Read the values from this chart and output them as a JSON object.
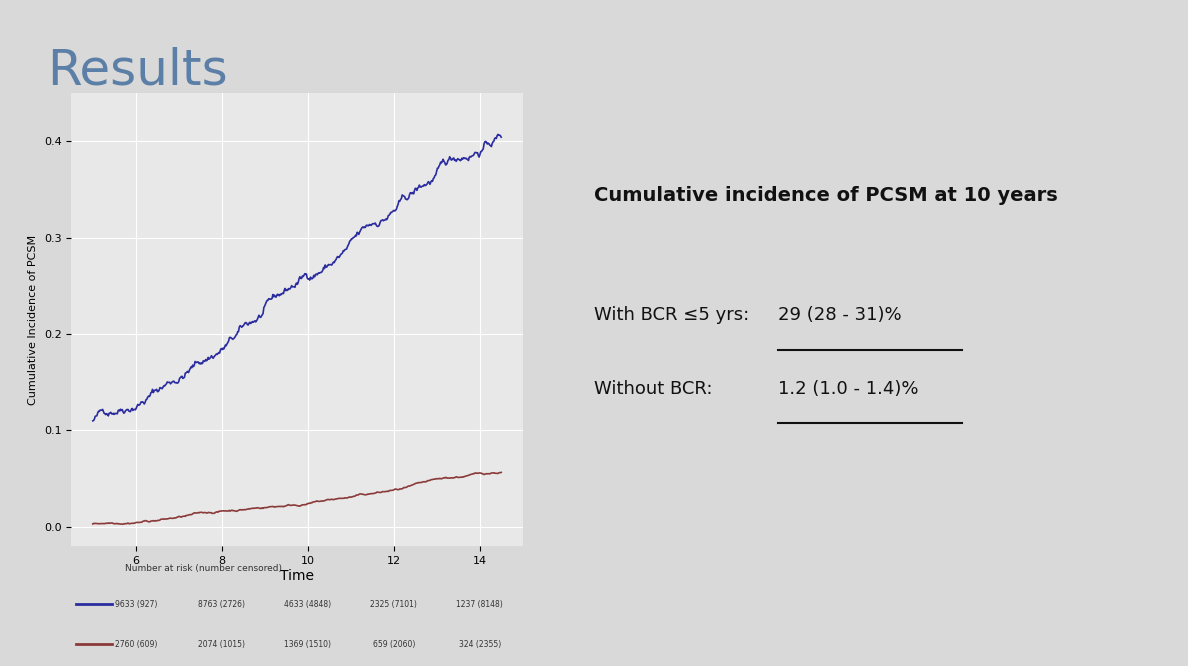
{
  "title": "Results",
  "title_color": "#5B7FA6",
  "title_fontsize": 36,
  "background_color": "#D9D9D9",
  "plot_bg_color": "#E8E8E8",
  "ylabel": "Cumulative Incidence of PCSM",
  "xlabel": "Time",
  "xlim": [
    4.5,
    15
  ],
  "ylim": [
    -0.02,
    0.45
  ],
  "xticks": [
    6,
    8,
    10,
    12,
    14
  ],
  "yticks": [
    0.0,
    0.1,
    0.2,
    0.3,
    0.4
  ],
  "blue_color": "#2B2D9E",
  "red_color": "#8B3A3A",
  "grid_color": "#FFFFFF",
  "annotation_title": "Cumulative incidence of PCSM at 10 years",
  "annotation_line1_plain": "With BCR ≤5 yrs: ",
  "annotation_line1_underline": "29 (28 - 31)%",
  "annotation_line2_plain": "Without BCR:     ",
  "annotation_line2_underline": "1.2 (1.0 - 1.4)%",
  "risk_table_header": "Number at risk (number censored)",
  "risk_table_blue": [
    "9633 (927)",
    "8763 (2726)",
    "4633 (4848)",
    "2325 (7101)",
    "1237 (8148)"
  ],
  "risk_table_red": [
    "2760 (609)",
    "2074 (1015)",
    "1369 (1510)",
    "659 (2060)",
    "324 (2355)"
  ],
  "risk_times": [
    6,
    8,
    10,
    12,
    14
  ]
}
